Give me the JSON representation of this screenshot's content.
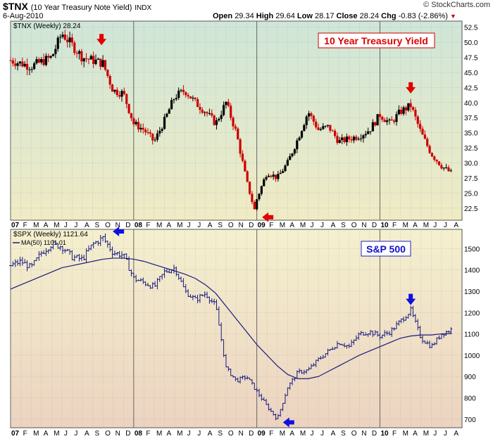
{
  "header": {
    "symbol": "$TNX",
    "description": "(10 Year Treasury Note Yield)",
    "exchange": "INDX",
    "date": "6-Aug-2010",
    "brand": "© StockCharts.com",
    "open_label": "Open",
    "open": "29.34",
    "high_label": "High",
    "high": "29.64",
    "low_label": "Low",
    "low": "28.17",
    "close_label": "Close",
    "close": "28.24",
    "chg_label": "Chg",
    "chg": "-0.83 (-2.86%)"
  },
  "colors": {
    "up_red": "#cc0000",
    "price_bar": "#000000",
    "spx_bar": "#1a1a80",
    "ma_line": "#1a1a80",
    "arrow_red": "#e00000",
    "arrow_blue": "#1010e0",
    "top_bg_top": "#cfe6d8",
    "top_bg_bottom": "#f0ebc4",
    "bottom_bg_top": "#f4f0ce",
    "bottom_bg_bottom": "#ecd3c0"
  },
  "x_axis": {
    "labels": [
      "07",
      "F",
      "M",
      "A",
      "M",
      "J",
      "J",
      "A",
      "S",
      "O",
      "N",
      "D",
      "08",
      "F",
      "M",
      "A",
      "M",
      "J",
      "J",
      "A",
      "S",
      "O",
      "N",
      "D",
      "09",
      "F",
      "M",
      "A",
      "M",
      "J",
      "J",
      "A",
      "S",
      "O",
      "N",
      "D",
      "10",
      "F",
      "M",
      "A",
      "M",
      "J",
      "J",
      "A"
    ]
  },
  "chart_data": [
    {
      "type": "line",
      "title": "10 Year Treasury Yield",
      "legend": [
        "$TNX (Weekly) 28.24"
      ],
      "y_ticks": [
        22.5,
        25.0,
        27.5,
        30.0,
        32.5,
        35.0,
        37.5,
        40.0,
        42.5,
        45.0,
        47.5,
        50.0,
        52.5
      ],
      "y_tick_labels": [
        "22.5",
        "25.0",
        "27.5",
        "30.0",
        "32.5",
        "35.0",
        "37.5",
        "40.0",
        "42.5",
        "45.0",
        "47.5",
        "50.0",
        "52.5"
      ],
      "ylim": [
        20.5,
        53.5
      ],
      "grid": true,
      "x": [
        "2007-01",
        "2007-03",
        "2007-05",
        "2007-06",
        "2007-08",
        "2007-10",
        "2007-11",
        "2007-12",
        "2008-01",
        "2008-02",
        "2008-03",
        "2008-04",
        "2008-05",
        "2008-06",
        "2008-07",
        "2008-08",
        "2008-09",
        "2008-10",
        "2008-11",
        "2008-12",
        "2008-12-30",
        "2009-01",
        "2009-02",
        "2009-03",
        "2009-04",
        "2009-05",
        "2009-06",
        "2009-07",
        "2009-08",
        "2009-09",
        "2009-10",
        "2009-11",
        "2009-12",
        "2010-01",
        "2010-02",
        "2010-03",
        "2010-04",
        "2010-05",
        "2010-06",
        "2010-07",
        "2010-08"
      ],
      "values": [
        47.0,
        46.0,
        47.5,
        51.5,
        47.5,
        46.5,
        42.0,
        41.5,
        36.5,
        35.5,
        33.5,
        37.0,
        41.0,
        42.0,
        40.0,
        38.5,
        36.5,
        40.0,
        35.0,
        27.0,
        21.0,
        24.0,
        28.5,
        27.5,
        30.0,
        34.0,
        38.5,
        35.5,
        36.0,
        33.5,
        34.0,
        34.5,
        35.5,
        38.0,
        36.5,
        38.5,
        39.5,
        35.0,
        31.5,
        29.5,
        28.24
      ],
      "annotations": [
        "red-arrow-down 2007-10",
        "red-arrow-left 2008-12-30",
        "red-arrow-down 2010-04"
      ]
    },
    {
      "type": "line",
      "title": "S&P 500",
      "legend": [
        "$SPX (Weekly) 1121.64",
        "MA(50) 1101.01"
      ],
      "y_ticks": [
        700,
        800,
        900,
        1000,
        1100,
        1200,
        1300,
        1400,
        1500
      ],
      "y_tick_labels": [
        "700",
        "800",
        "900",
        "1000",
        "1100",
        "1200",
        "1300",
        "1400",
        "1500"
      ],
      "ylim": [
        660,
        1590
      ],
      "grid": true,
      "x": [
        "2007-01",
        "2007-02",
        "2007-03",
        "2007-04",
        "2007-05",
        "2007-06",
        "2007-07",
        "2007-08",
        "2007-09",
        "2007-10",
        "2007-11",
        "2007-12",
        "2008-01",
        "2008-02",
        "2008-03",
        "2008-04",
        "2008-05",
        "2008-06",
        "2008-07",
        "2008-08",
        "2008-09",
        "2008-10",
        "2008-11",
        "2008-12",
        "2009-01",
        "2009-02",
        "2009-03",
        "2009-04",
        "2009-05",
        "2009-06",
        "2009-07",
        "2009-08",
        "2009-09",
        "2009-10",
        "2009-11",
        "2009-12",
        "2010-01",
        "2010-02",
        "2010-03",
        "2010-04",
        "2010-05",
        "2010-06",
        "2010-07",
        "2010-08"
      ],
      "values": [
        1420,
        1440,
        1410,
        1480,
        1520,
        1510,
        1460,
        1450,
        1520,
        1550,
        1480,
        1470,
        1360,
        1340,
        1320,
        1390,
        1410,
        1300,
        1260,
        1290,
        1230,
        940,
        880,
        900,
        830,
        760,
        700,
        850,
        920,
        930,
        980,
        1020,
        1060,
        1040,
        1100,
        1110,
        1090,
        1110,
        1160,
        1210,
        1080,
        1040,
        1100,
        1121.64
      ],
      "ma_values": [
        1310,
        1330,
        1350,
        1370,
        1390,
        1410,
        1420,
        1430,
        1440,
        1450,
        1455,
        1455,
        1450,
        1440,
        1425,
        1410,
        1395,
        1380,
        1360,
        1330,
        1290,
        1230,
        1170,
        1110,
        1050,
        1000,
        950,
        910,
        890,
        890,
        900,
        925,
        950,
        975,
        1000,
        1020,
        1040,
        1060,
        1080,
        1090,
        1095,
        1095,
        1100,
        1101.01
      ],
      "annotations": [
        "blue-arrow-left 2007-10",
        "blue-arrow-left 2009-03",
        "blue-arrow-down 2010-04"
      ]
    }
  ]
}
